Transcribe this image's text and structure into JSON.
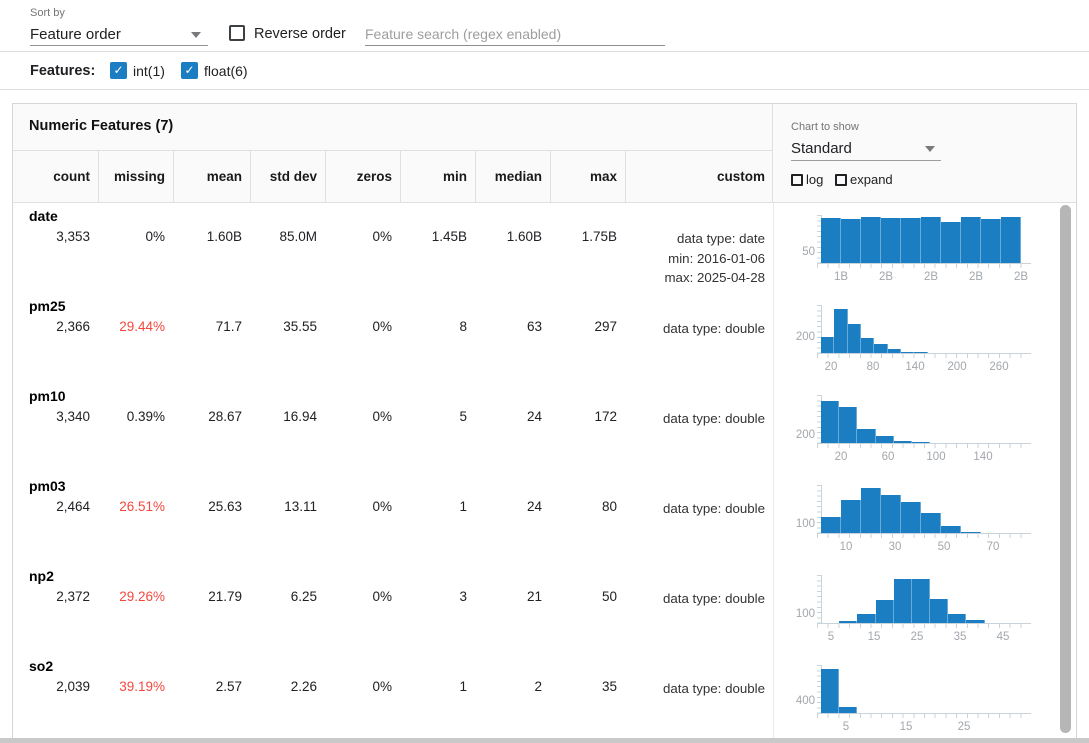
{
  "toolbar": {
    "sort_by_label": "Sort by",
    "sort_by_value": "Feature order",
    "reverse_order_label": "Reverse order",
    "search_placeholder": "Feature search (regex enabled)"
  },
  "features_bar": {
    "label": "Features:",
    "checkboxes": [
      {
        "label": "int(1)",
        "checked": true
      },
      {
        "label": "float(6)",
        "checked": true
      }
    ],
    "check_glyph": "✓"
  },
  "table": {
    "title": "Numeric Features (7)",
    "columns": [
      "count",
      "missing",
      "mean",
      "std dev",
      "zeros",
      "min",
      "median",
      "max",
      "custom"
    ],
    "chart_controls": {
      "label": "Chart to show",
      "value": "Standard",
      "log_label": "log",
      "expand_label": "expand"
    },
    "rows": [
      {
        "name": "date",
        "count": "3,353",
        "missing": "0%",
        "missing_alert": false,
        "mean": "1.60B",
        "std_dev": "85.0M",
        "zeros": "0%",
        "min": "1.45B",
        "median": "1.60B",
        "max": "1.75B",
        "custom": [
          "data type: date",
          "min: 2016-01-06",
          "max: 2025-04-28"
        ]
      },
      {
        "name": "pm25",
        "count": "2,366",
        "missing": "29.44%",
        "missing_alert": true,
        "mean": "71.7",
        "std_dev": "35.55",
        "zeros": "0%",
        "min": "8",
        "median": "63",
        "max": "297",
        "custom": [
          "data type: double"
        ]
      },
      {
        "name": "pm10",
        "count": "3,340",
        "missing": "0.39%",
        "missing_alert": false,
        "mean": "28.67",
        "std_dev": "16.94",
        "zeros": "0%",
        "min": "5",
        "median": "24",
        "max": "172",
        "custom": [
          "data type: double"
        ]
      },
      {
        "name": "pm03",
        "count": "2,464",
        "missing": "26.51%",
        "missing_alert": true,
        "mean": "25.63",
        "std_dev": "13.11",
        "zeros": "0%",
        "min": "1",
        "median": "24",
        "max": "80",
        "custom": [
          "data type: double"
        ]
      },
      {
        "name": "np2",
        "count": "2,372",
        "missing": "29.26%",
        "missing_alert": true,
        "mean": "21.79",
        "std_dev": "6.25",
        "zeros": "0%",
        "min": "3",
        "median": "21",
        "max": "50",
        "custom": [
          "data type: double"
        ]
      },
      {
        "name": "so2",
        "count": "2,039",
        "missing": "39.19%",
        "missing_alert": true,
        "mean": "2.57",
        "std_dev": "2.26",
        "zeros": "0%",
        "min": "1",
        "median": "2",
        "max": "35",
        "custom": [
          "data type: double"
        ]
      }
    ]
  },
  "chart_data": [
    {
      "type": "bar",
      "title": "date histogram",
      "ylim": [
        0,
        230
      ],
      "ytick": {
        "label": "50",
        "value": 50
      },
      "values": [
        215,
        213,
        220,
        218,
        218,
        220,
        197,
        222,
        210,
        220
      ],
      "xticks": [
        {
          "label": "1B",
          "pos": 0.1
        },
        {
          "label": "2B",
          "pos": 0.325
        },
        {
          "label": "2B",
          "pos": 0.55
        },
        {
          "label": "2B",
          "pos": 0.775
        },
        {
          "label": "2B",
          "pos": 1.0
        }
      ]
    },
    {
      "type": "bar",
      "title": "pm25 histogram",
      "ylim": [
        0,
        650
      ],
      "ytick": {
        "label": "200",
        "value": 200
      },
      "values": [
        215,
        600,
        390,
        200,
        123,
        55,
        14,
        7,
        4,
        3,
        2,
        1,
        1,
        1,
        1
      ],
      "xticks": [
        {
          "label": "20",
          "pos": 0.05
        },
        {
          "label": "80",
          "pos": 0.26
        },
        {
          "label": "140",
          "pos": 0.47
        },
        {
          "label": "200",
          "pos": 0.68
        },
        {
          "label": "260",
          "pos": 0.89
        }
      ]
    },
    {
      "type": "bar",
      "title": "pm10 histogram",
      "ylim": [
        0,
        1400
      ],
      "ytick": {
        "label": "200",
        "value": 200
      },
      "values": [
        1225,
        1065,
        420,
        200,
        64,
        16,
        8,
        5,
        3,
        2,
        1
      ],
      "xticks": [
        {
          "label": "20",
          "pos": 0.1
        },
        {
          "label": "60",
          "pos": 0.335
        },
        {
          "label": "100",
          "pos": 0.575
        },
        {
          "label": "140",
          "pos": 0.81
        }
      ]
    },
    {
      "type": "bar",
      "title": "pm03 histogram",
      "ylim": [
        0,
        600
      ],
      "ytick": {
        "label": "100",
        "value": 100
      },
      "values": [
        205,
        415,
        560,
        470,
        385,
        250,
        85,
        8,
        4,
        2
      ],
      "xticks": [
        {
          "label": "10",
          "pos": 0.125
        },
        {
          "label": "30",
          "pos": 0.37
        },
        {
          "label": "50",
          "pos": 0.615
        },
        {
          "label": "70",
          "pos": 0.86
        }
      ]
    },
    {
      "type": "bar",
      "title": "np2 histogram",
      "ylim": [
        0,
        590
      ],
      "ytick": {
        "label": "100",
        "value": 100
      },
      "values": [
        6,
        30,
        110,
        280,
        535,
        535,
        300,
        115,
        32,
        6,
        2
      ],
      "xticks": [
        {
          "label": "5",
          "pos": 0.05
        },
        {
          "label": "15",
          "pos": 0.265
        },
        {
          "label": "25",
          "pos": 0.48
        },
        {
          "label": "35",
          "pos": 0.695
        },
        {
          "label": "45",
          "pos": 0.91
        }
      ]
    },
    {
      "type": "bar",
      "title": "so2 histogram",
      "ylim": [
        0,
        1700
      ],
      "ytick": {
        "label": "400",
        "value": 400
      },
      "values": [
        1560,
        205,
        18,
        9,
        6,
        5,
        4,
        3,
        3,
        2,
        2
      ],
      "xticks": [
        {
          "label": "5",
          "pos": 0.125
        },
        {
          "label": "15",
          "pos": 0.425
        },
        {
          "label": "25",
          "pos": 0.715
        }
      ]
    }
  ],
  "colors": {
    "accent_blue": "#1b7dc2",
    "alert_red": "#f4483e",
    "bar_blue": "#1b7dc2"
  }
}
